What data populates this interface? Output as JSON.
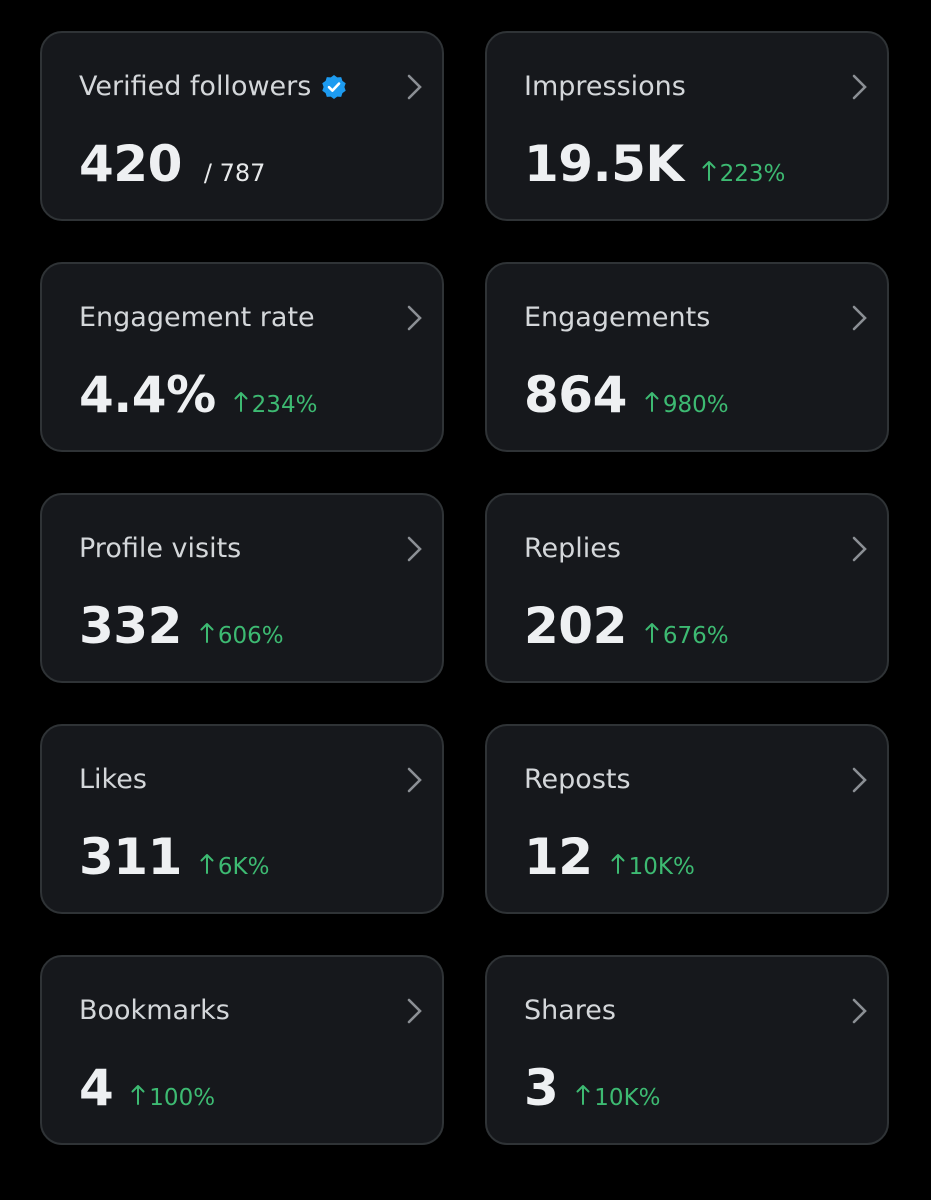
{
  "cards": [
    {
      "label": "Verified followers",
      "verified": true,
      "value": "420",
      "total": "/ 787"
    },
    {
      "label": "Impressions",
      "value": "19.5K",
      "change": "223%"
    },
    {
      "label": "Engagement rate",
      "value": "4.4%",
      "change": "234%"
    },
    {
      "label": "Engagements",
      "value": "864",
      "change": "980%"
    },
    {
      "label": "Profile visits",
      "value": "332",
      "change": "606%"
    },
    {
      "label": "Replies",
      "value": "202",
      "change": "676%"
    },
    {
      "label": "Likes",
      "value": "311",
      "change": "6K%"
    },
    {
      "label": "Reposts",
      "value": "12",
      "change": "10K%"
    },
    {
      "label": "Bookmarks",
      "value": "4",
      "change": "100%"
    },
    {
      "label": "Shares",
      "value": "3",
      "change": "10K%"
    }
  ]
}
